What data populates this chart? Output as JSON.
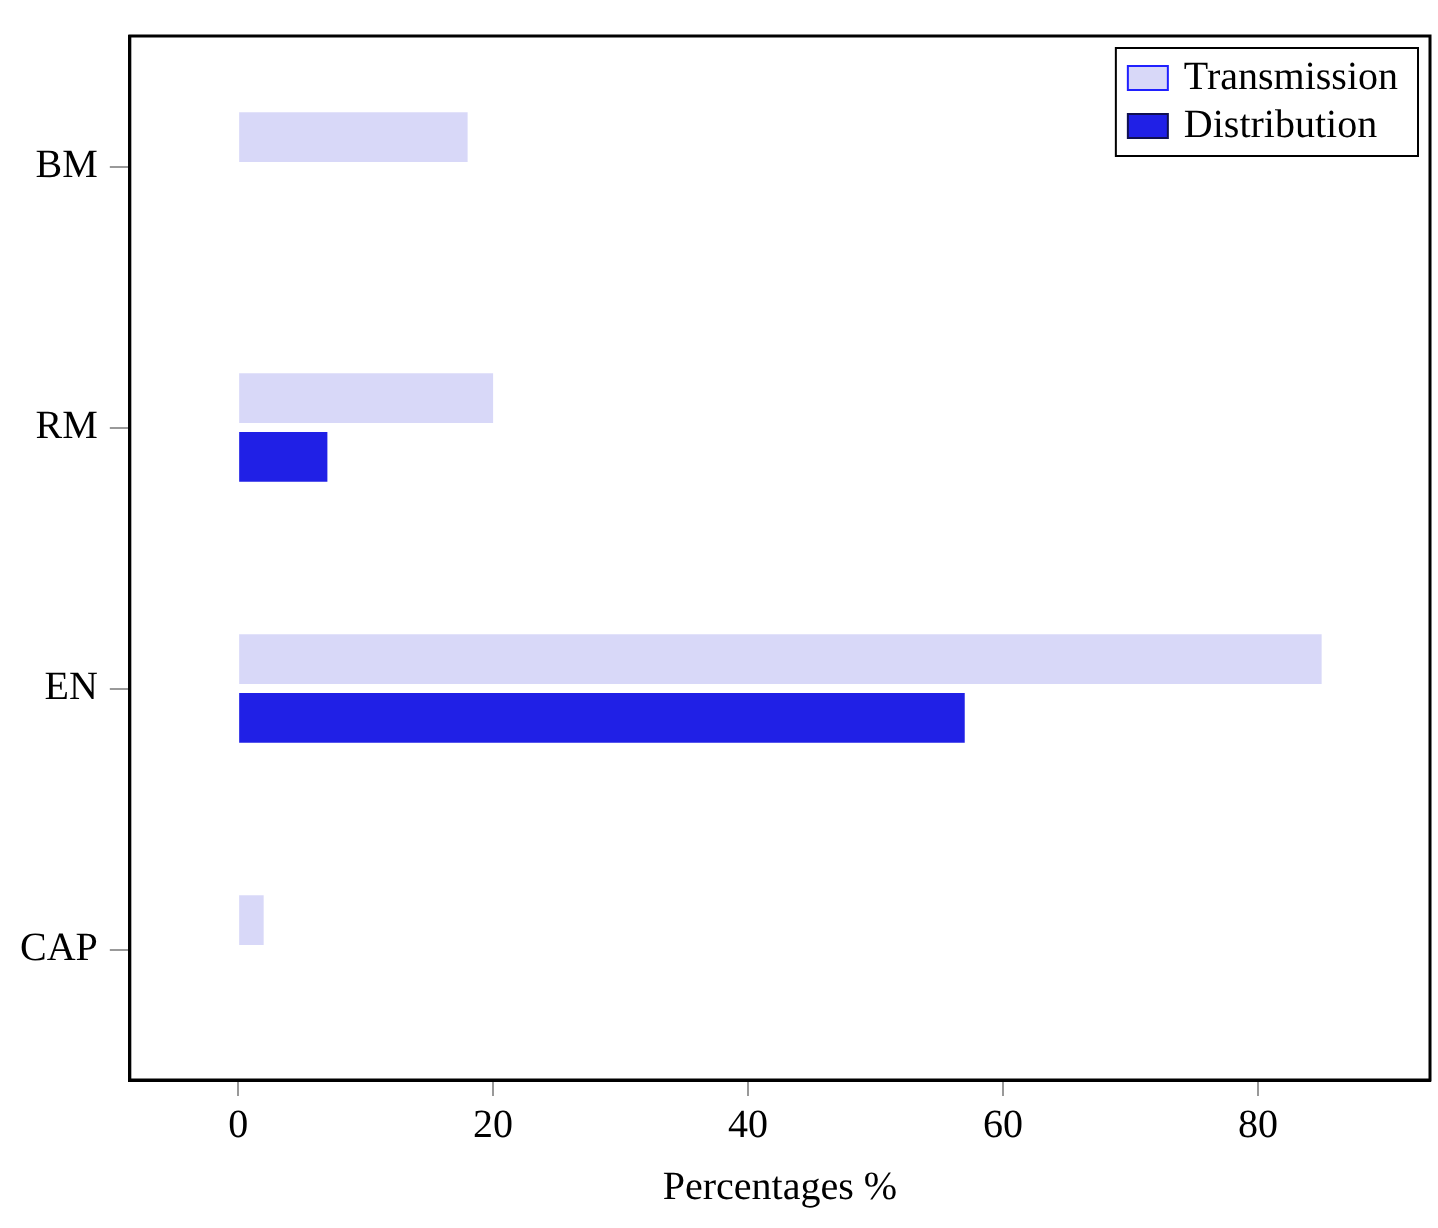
{
  "chart_data": {
    "type": "bar",
    "orientation": "horizontal",
    "xlabel": "Percentages %",
    "categories": [
      "BM",
      "RM",
      "EN",
      "CAP"
    ],
    "series": [
      {
        "name": "Transmission",
        "color": "#d8d8f8",
        "values": [
          18,
          20,
          85,
          2
        ]
      },
      {
        "name": "Distribution",
        "color": "#2020e6",
        "values": [
          0,
          7,
          57,
          0
        ]
      }
    ],
    "xlim": [
      -8.5,
      93.5
    ],
    "xticks": [
      0,
      20,
      40,
      60,
      80
    ],
    "grid": false,
    "legend": "top right"
  }
}
